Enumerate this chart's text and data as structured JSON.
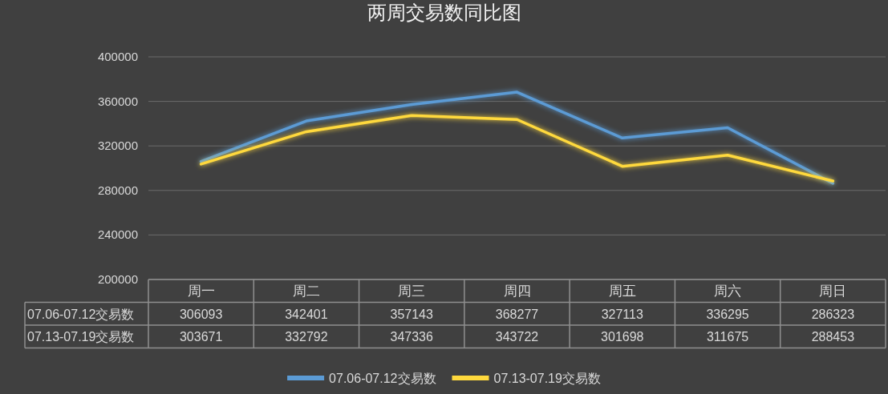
{
  "chart_data": {
    "type": "line",
    "title": "两周交易数同比图",
    "categories": [
      "周一",
      "周二",
      "周三",
      "周四",
      "周五",
      "周六",
      "周日"
    ],
    "series": [
      {
        "name": "07.06-07.12交易数",
        "color": "#5b9bd5",
        "values": [
          306093,
          342401,
          357143,
          368277,
          327113,
          336295,
          286323
        ]
      },
      {
        "name": "07.13-07.19交易数",
        "color": "#ffd93d",
        "values": [
          303671,
          332792,
          347336,
          343722,
          301698,
          311675,
          288453
        ]
      }
    ],
    "ylim": [
      200000,
      400000
    ],
    "yticks": [
      200000,
      240000,
      280000,
      320000,
      360000,
      400000
    ],
    "grid": "y",
    "legend": "bottom",
    "data_labels": true
  }
}
